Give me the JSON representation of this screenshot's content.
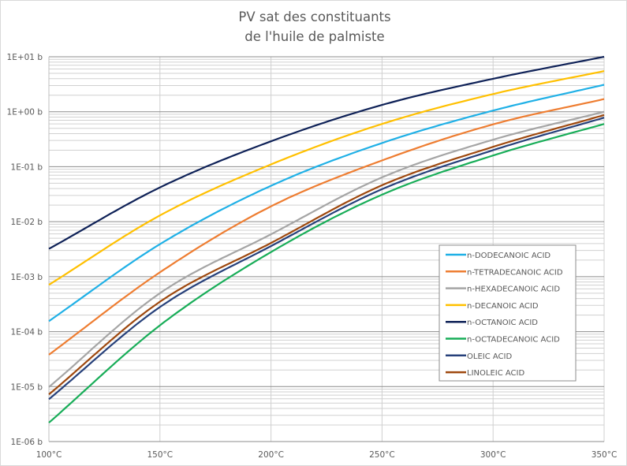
{
  "chart_data": {
    "type": "line",
    "title": [
      "PV sat des constituants",
      "de l'huile de palmiste"
    ],
    "xlabel": "",
    "ylabel": "",
    "x": [
      100,
      150,
      200,
      250,
      300,
      350
    ],
    "xlim": [
      100,
      350
    ],
    "ylim": [
      1e-06,
      10
    ],
    "yscale": "log",
    "grid": true,
    "legend_position": "bottom-right",
    "xticks": [
      100,
      150,
      200,
      250,
      300,
      350
    ],
    "xtick_labels": [
      "100°C",
      "150°C",
      "200°C",
      "250°C",
      "300°C",
      "350°C"
    ],
    "yticks": [
      10,
      1,
      0.1,
      0.01,
      0.001,
      0.0001,
      1e-05,
      1e-06
    ],
    "ytick_labels": [
      "1E+01 b",
      "1E+00 b",
      "1E-01 b",
      "1E-02 b",
      "1E-03 b",
      "1E-04 b",
      "1E-05 b",
      "1E-06 b"
    ],
    "series": [
      {
        "name": "n-DODECANOIC ACID",
        "color": "#1fb0e6",
        "values": [
          0.000155,
          0.0039,
          0.045,
          0.27,
          1.05,
          3.1
        ]
      },
      {
        "name": "n-TETRADECANOIC ACID",
        "color": "#ee7d31",
        "values": [
          3.8e-05,
          0.0012,
          0.019,
          0.13,
          0.59,
          1.7
        ]
      },
      {
        "name": "n-HEXADECANOIC ACID",
        "color": "#a5a5a5",
        "values": [
          9.8e-06,
          0.0005,
          0.0059,
          0.064,
          0.31,
          1.0
        ]
      },
      {
        "name": "n-DECANOIC ACID",
        "color": "#ffc000",
        "values": [
          0.00071,
          0.013,
          0.11,
          0.6,
          2.1,
          5.5
        ]
      },
      {
        "name": "n-OCTANOIC ACID",
        "color": "#0e2157",
        "values": [
          0.0032,
          0.042,
          0.29,
          1.33,
          3.98,
          10
        ]
      },
      {
        "name": "n-OCTADECANOIC ACID",
        "color": "#18ad58",
        "values": [
          2.2e-06,
          0.00013,
          0.0028,
          0.031,
          0.16,
          0.6
        ]
      },
      {
        "name": "OLEIC ACID",
        "color": "#26407a",
        "values": [
          5.9e-06,
          0.00028,
          0.0036,
          0.039,
          0.2,
          0.78
        ]
      },
      {
        "name": "LINOLEIC ACID",
        "color": "#9e480e",
        "values": [
          7.2e-06,
          0.00035,
          0.0041,
          0.046,
          0.23,
          0.87
        ]
      }
    ]
  }
}
